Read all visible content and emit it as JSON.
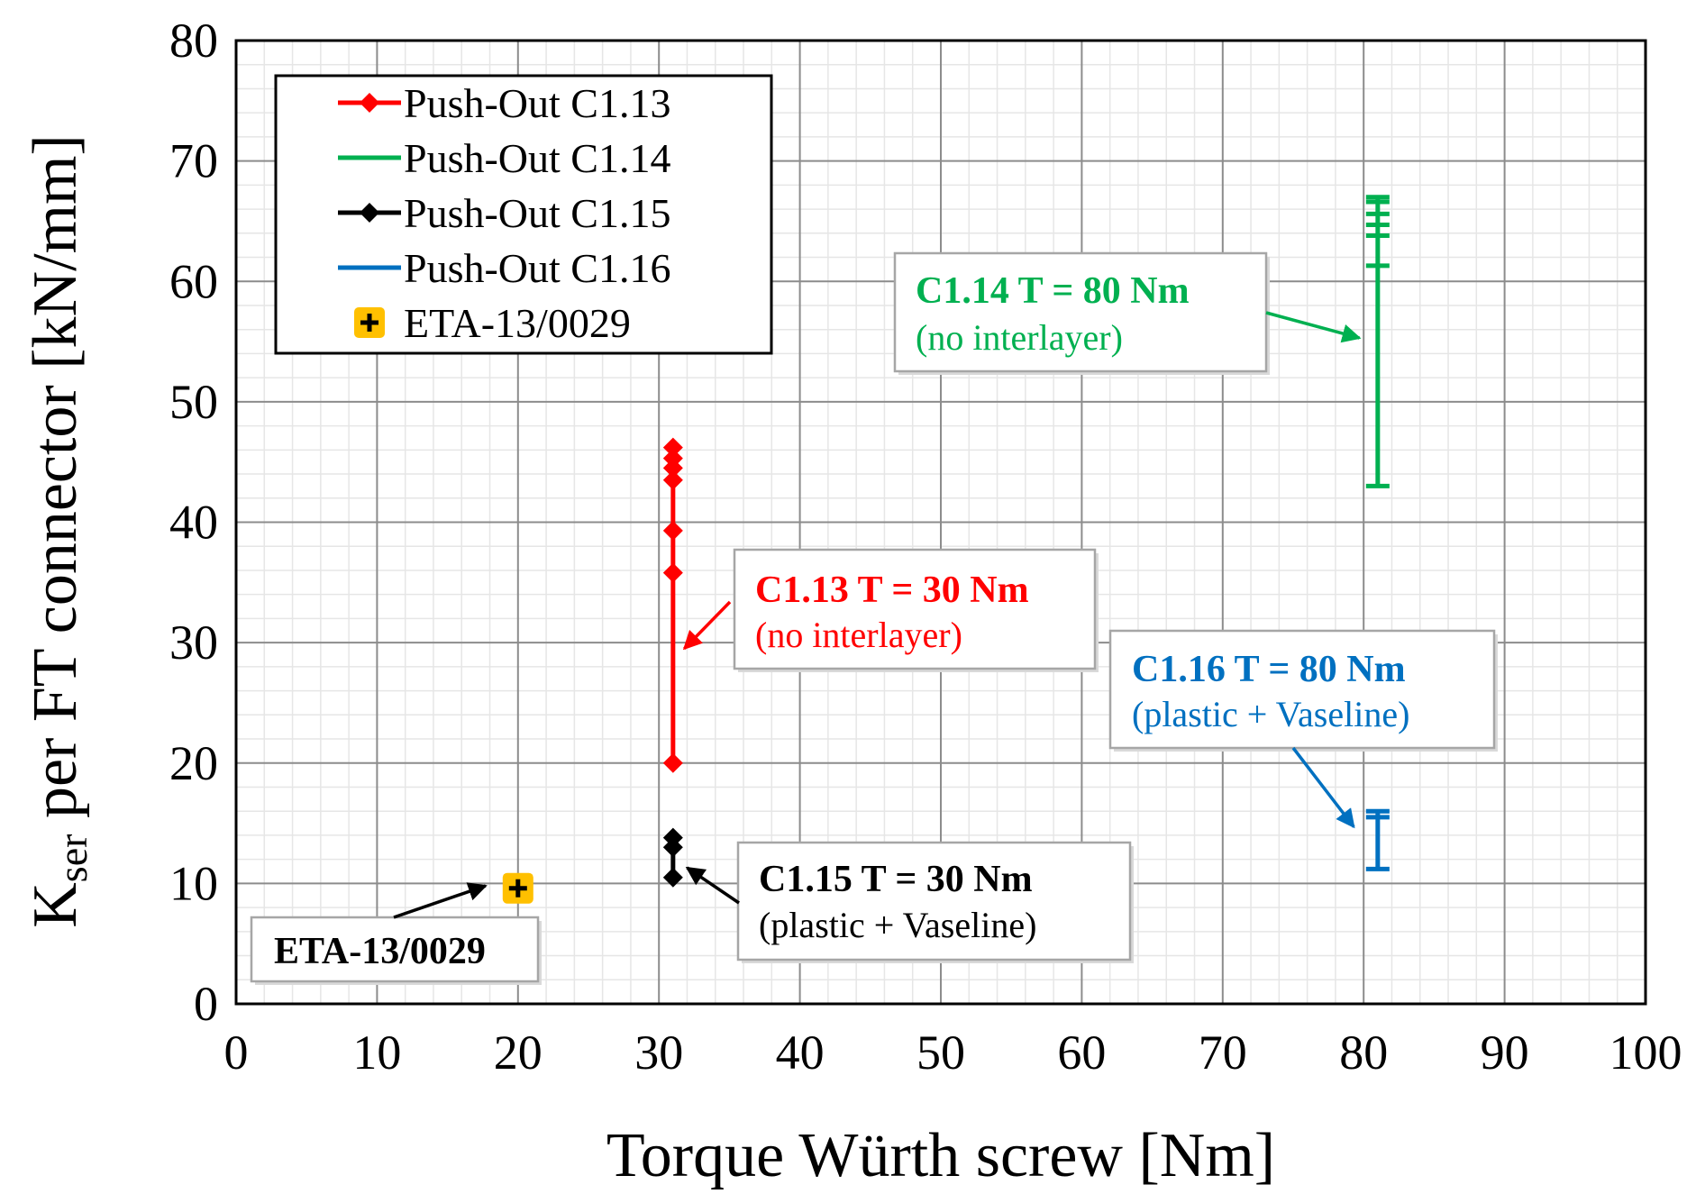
{
  "chart_data": {
    "type": "scatter",
    "title": "",
    "xlabel": "Torque Würth screw [Nm]",
    "ylabel": {
      "main": "K",
      "subscript": "ser",
      "rest": " per FT connector [kN/mm]"
    },
    "xlim": [
      0,
      100
    ],
    "ylim": [
      0,
      80
    ],
    "xticks": [
      0,
      10,
      20,
      30,
      40,
      50,
      60,
      70,
      80,
      90,
      100
    ],
    "yticks": [
      0,
      10,
      20,
      30,
      40,
      50,
      60,
      70,
      80
    ],
    "grid": true,
    "legend_position": "top-left",
    "series": [
      {
        "name": "Push-Out C1.13",
        "color": "#ff0000",
        "marker": "diamond",
        "x": 31,
        "values": [
          20,
          35.8,
          39.3,
          43.5,
          44.5,
          45.3,
          46.2
        ]
      },
      {
        "name": "Push-Out C1.14",
        "color": "#00b050",
        "marker": "dash",
        "x": 81,
        "values": [
          43,
          61.3,
          63.8,
          64.7,
          65.6,
          66.6,
          67
        ]
      },
      {
        "name": "Push-Out C1.15",
        "color": "#000000",
        "marker": "diamond",
        "x": 31,
        "values": [
          10.5,
          13,
          13.8
        ]
      },
      {
        "name": "Push-Out C1.16",
        "color": "#0070c0",
        "marker": "dash",
        "x": 81,
        "values": [
          11.2,
          15.5,
          16
        ]
      },
      {
        "name": "ETA-13/0029",
        "color": "#ffc000",
        "marker": "plus-square",
        "x": 20,
        "values": [
          9.6
        ]
      }
    ],
    "annotations": [
      {
        "id": "c113",
        "line1": "C1.13 T = 30 Nm",
        "line2": "(no interlayer)",
        "color": "#ff0000",
        "arrow_target": [
          31.8,
          29.5
        ]
      },
      {
        "id": "c114",
        "line1": "C1.14 T = 80 Nm",
        "line2": "(no interlayer)",
        "color": "#00b050",
        "arrow_target": [
          79.7,
          55.3
        ]
      },
      {
        "id": "c115",
        "line1": "C1.15 T = 30 Nm",
        "line2": "(plastic + Vaseline)",
        "color": "#000000",
        "arrow_target": [
          32,
          11.3
        ]
      },
      {
        "id": "c116",
        "line1": "C1.16 T = 80 Nm",
        "line2": "(plastic + Vaseline)",
        "color": "#0070c0",
        "arrow_target": [
          79.3,
          14.7
        ]
      },
      {
        "id": "eta",
        "line1": "ETA-13/0029",
        "line2": "",
        "color": "#000000",
        "arrow_target": [
          17.7,
          9.8
        ]
      }
    ]
  }
}
